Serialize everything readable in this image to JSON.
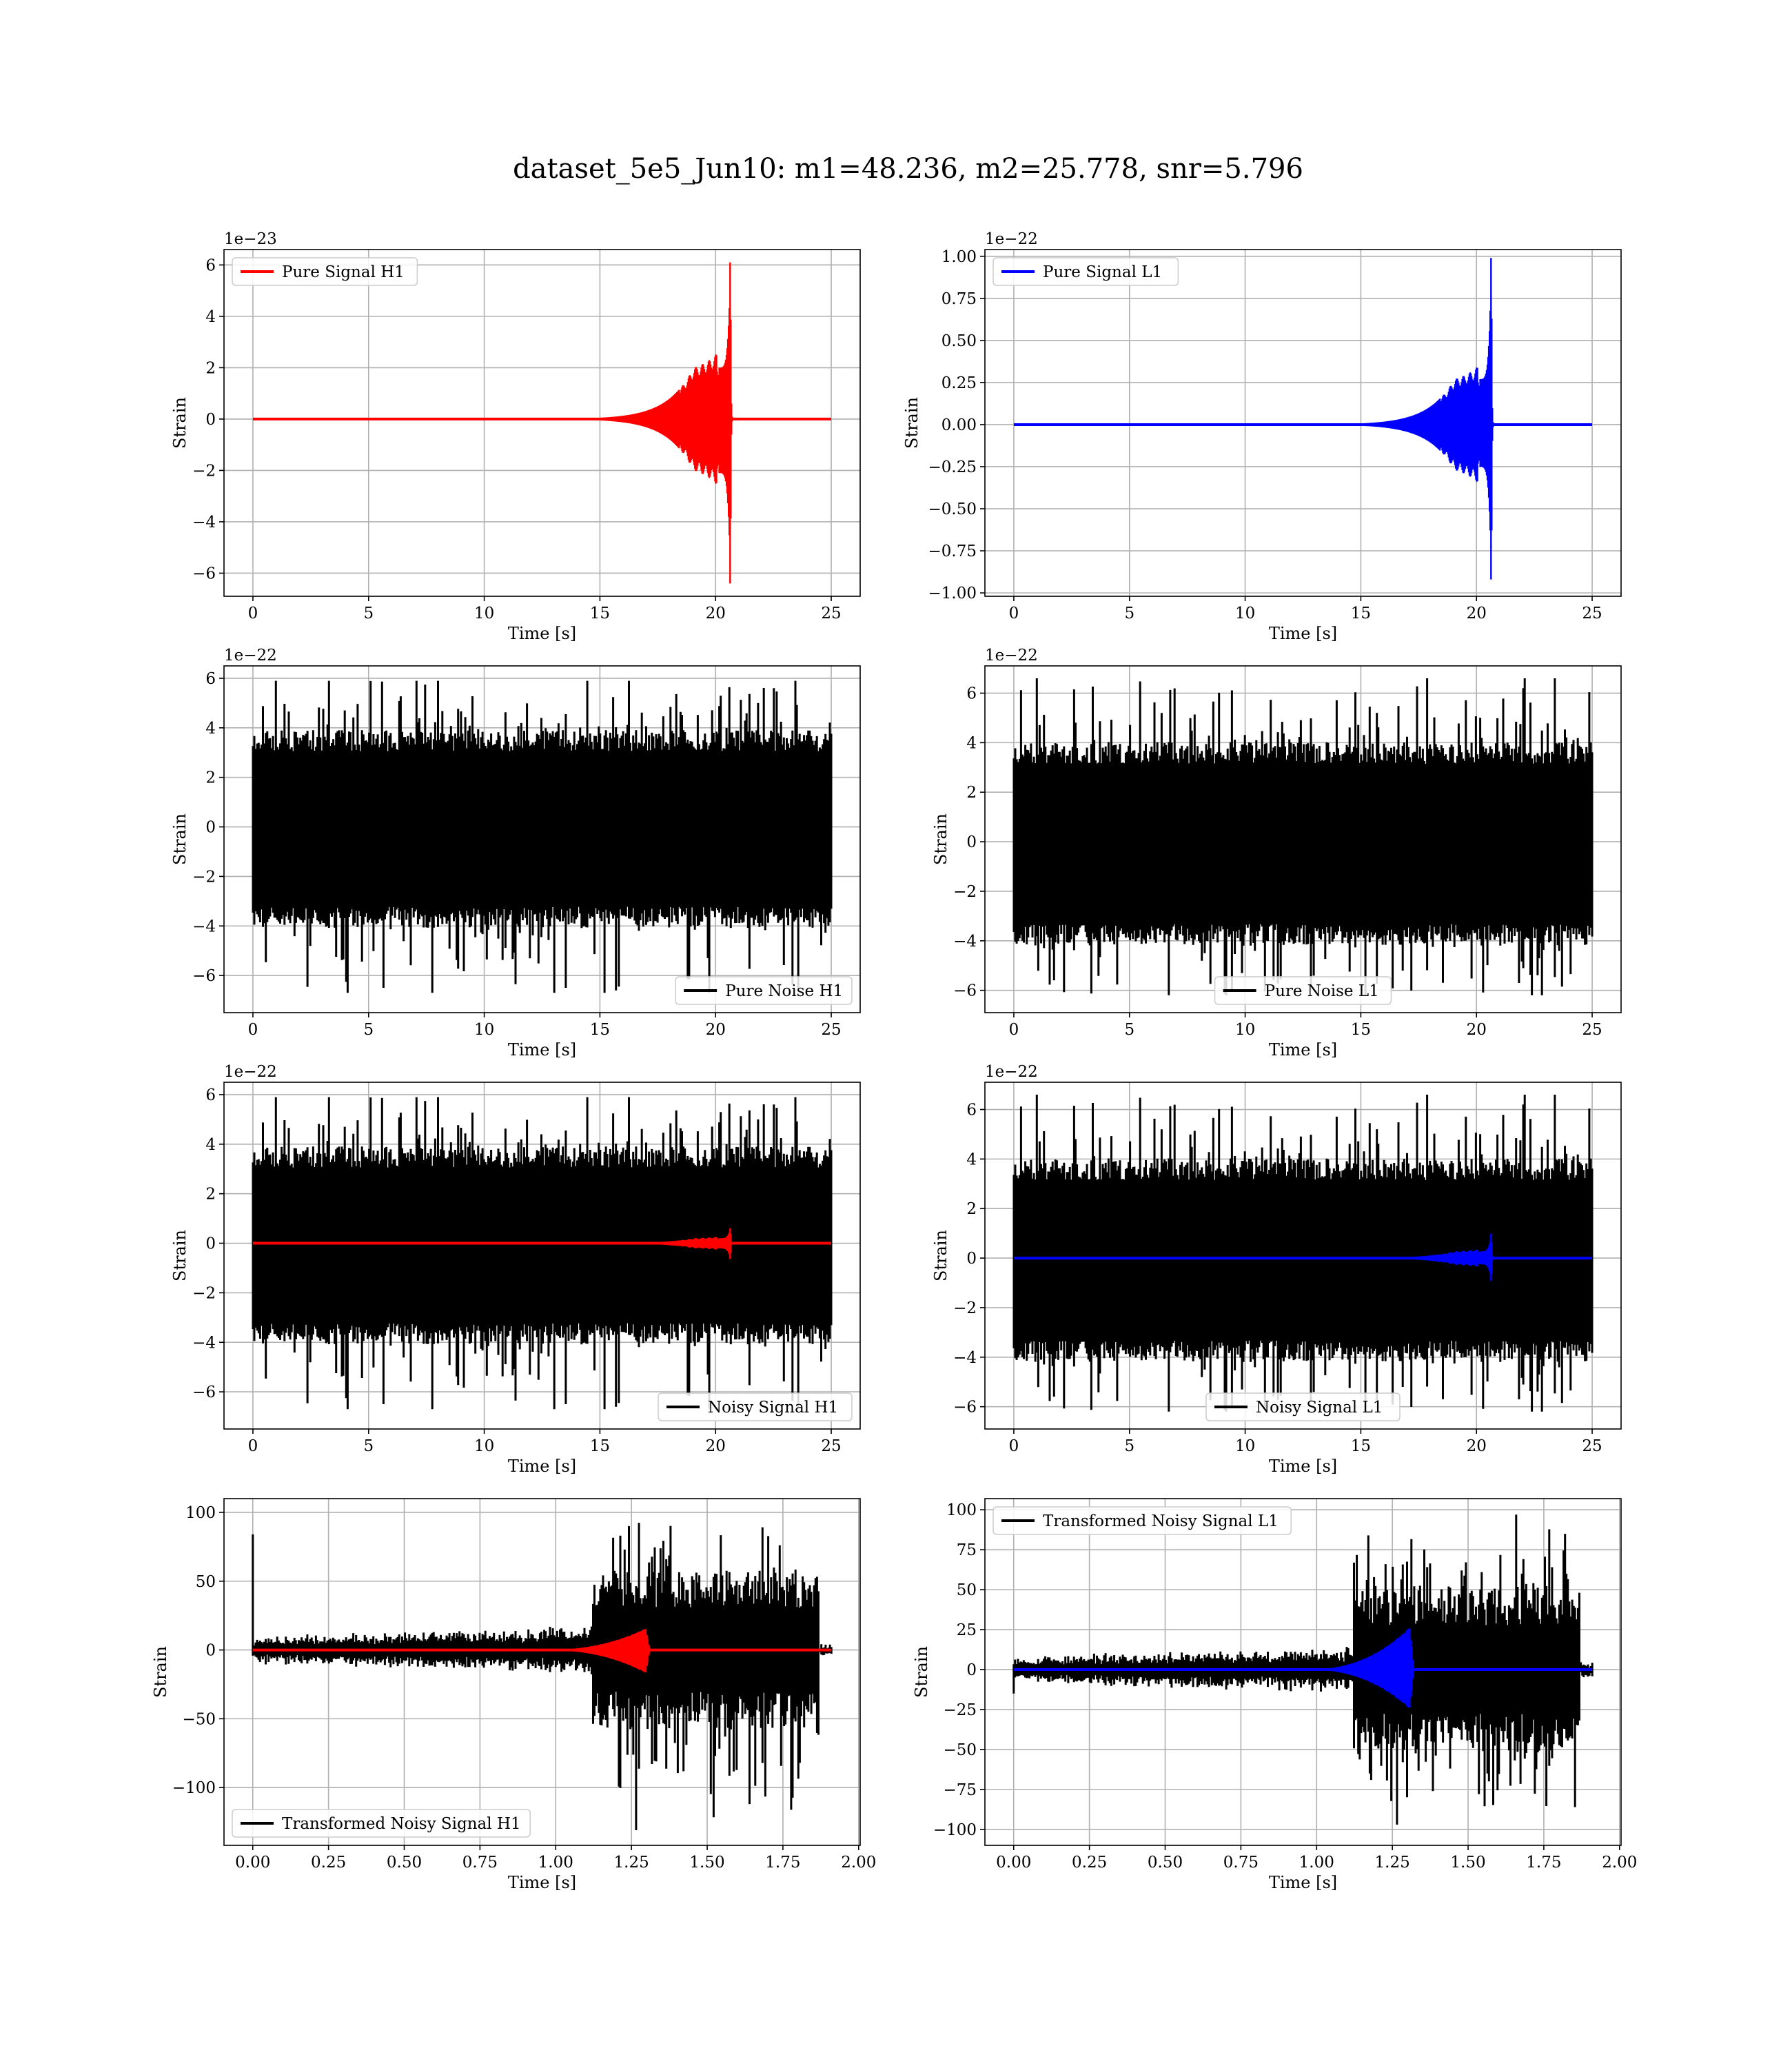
{
  "title": "dataset_5e5_Jun10: m1=48.236, m2=25.778, snr=5.796",
  "colors": {
    "h1_signal": "#ff0000",
    "l1_signal": "#0000ff",
    "noise": "#000000",
    "grid": "#b0b0b0"
  },
  "chart_data": [
    {
      "type": "line",
      "id": "pure-signal-h1",
      "xlabel": "Time [s]",
      "ylabel": "Strain",
      "offset_text": "1e−23",
      "xlim": [
        -1.25,
        26.25
      ],
      "ylim": [
        -6.9,
        6.6
      ],
      "xticks": [
        0,
        5,
        10,
        15,
        20,
        25
      ],
      "xtick_labels": [
        "0",
        "5",
        "10",
        "15",
        "20",
        "25"
      ],
      "yticks": [
        -6,
        -4,
        -2,
        0,
        2,
        4,
        6
      ],
      "ytick_labels": [
        "−6",
        "−4",
        "−2",
        "0",
        "2",
        "4",
        "6"
      ],
      "grid": true,
      "legend_loc": "upper left",
      "series": [
        {
          "name": "Pure Signal H1",
          "color": "#ff0000",
          "kind": "chirp",
          "t_start": 0,
          "t_end": 25,
          "t_merge": 20.65,
          "peak_pos": 6.1,
          "peak_neg": -6.4,
          "plateau": 2.0
        }
      ]
    },
    {
      "type": "line",
      "id": "pure-signal-l1",
      "xlabel": "Time [s]",
      "ylabel": "Strain",
      "offset_text": "1e−22",
      "xlim": [
        -1.25,
        26.25
      ],
      "ylim": [
        -1.02,
        1.04
      ],
      "xticks": [
        0,
        5,
        10,
        15,
        20,
        25
      ],
      "xtick_labels": [
        "0",
        "5",
        "10",
        "15",
        "20",
        "25"
      ],
      "yticks": [
        -1.0,
        -0.75,
        -0.5,
        -0.25,
        0.0,
        0.25,
        0.5,
        0.75,
        1.0
      ],
      "ytick_labels": [
        "−1.00",
        "−0.75",
        "−0.50",
        "−0.25",
        "0.00",
        "0.25",
        "0.50",
        "0.75",
        "1.00"
      ],
      "grid": true,
      "legend_loc": "upper left",
      "series": [
        {
          "name": "Pure Signal L1",
          "color": "#0000ff",
          "kind": "chirp",
          "t_start": 0,
          "t_end": 25,
          "t_merge": 20.65,
          "peak_pos": 0.99,
          "peak_neg": -0.92,
          "plateau": 0.27
        }
      ]
    },
    {
      "type": "line",
      "id": "pure-noise-h1",
      "xlabel": "Time [s]",
      "ylabel": "Strain",
      "offset_text": "1e−22",
      "xlim": [
        -1.25,
        26.25
      ],
      "ylim": [
        -7.5,
        6.5
      ],
      "xticks": [
        0,
        5,
        10,
        15,
        20,
        25
      ],
      "xtick_labels": [
        "0",
        "5",
        "10",
        "15",
        "20",
        "25"
      ],
      "yticks": [
        -6,
        -4,
        -2,
        0,
        2,
        4,
        6
      ],
      "ytick_labels": [
        "−6",
        "−4",
        "−2",
        "0",
        "2",
        "4",
        "6"
      ],
      "grid": true,
      "legend_loc": "lower right",
      "series": [
        {
          "name": "Pure Noise H1",
          "color": "#000000",
          "kind": "noise",
          "t_start": 0,
          "t_end": 25,
          "core": 3.4,
          "max_pos": 5.9,
          "max_neg": -6.7,
          "seed": 11
        }
      ]
    },
    {
      "type": "line",
      "id": "pure-noise-l1",
      "xlabel": "Time [s]",
      "ylabel": "Strain",
      "offset_text": "1e−22",
      "xlim": [
        -1.25,
        26.25
      ],
      "ylim": [
        -6.9,
        7.1
      ],
      "xticks": [
        0,
        5,
        10,
        15,
        20,
        25
      ],
      "xtick_labels": [
        "0",
        "5",
        "10",
        "15",
        "20",
        "25"
      ],
      "yticks": [
        -6,
        -4,
        -2,
        0,
        2,
        4,
        6
      ],
      "ytick_labels": [
        "−6",
        "−4",
        "−2",
        "0",
        "2",
        "4",
        "6"
      ],
      "grid": true,
      "legend_loc": "lower center",
      "series": [
        {
          "name": "Pure Noise L1",
          "color": "#000000",
          "kind": "noise",
          "t_start": 0,
          "t_end": 25,
          "core": 3.5,
          "max_pos": 6.6,
          "max_neg": -6.2,
          "seed": 23
        }
      ]
    },
    {
      "type": "line",
      "id": "noisy-signal-h1",
      "xlabel": "Time [s]",
      "ylabel": "Strain",
      "offset_text": "1e−22",
      "xlim": [
        -1.25,
        26.25
      ],
      "ylim": [
        -7.5,
        6.5
      ],
      "xticks": [
        0,
        5,
        10,
        15,
        20,
        25
      ],
      "xtick_labels": [
        "0",
        "5",
        "10",
        "15",
        "20",
        "25"
      ],
      "yticks": [
        -6,
        -4,
        -2,
        0,
        2,
        4,
        6
      ],
      "ytick_labels": [
        "−6",
        "−4",
        "−2",
        "0",
        "2",
        "4",
        "6"
      ],
      "grid": true,
      "legend_loc": "lower right",
      "series": [
        {
          "name": "Noisy Signal H1",
          "color": "#000000",
          "kind": "noise",
          "t_start": 0,
          "t_end": 25,
          "core": 3.4,
          "max_pos": 5.9,
          "max_neg": -6.7,
          "seed": 11
        },
        {
          "name": "",
          "color": "#ff0000",
          "kind": "chirp",
          "t_start": 0,
          "t_end": 25,
          "t_merge": 20.65,
          "peak_pos": 0.61,
          "peak_neg": -0.64,
          "plateau": 0.2
        }
      ]
    },
    {
      "type": "line",
      "id": "noisy-signal-l1",
      "xlabel": "Time [s]",
      "ylabel": "Strain",
      "offset_text": "1e−22",
      "xlim": [
        -1.25,
        26.25
      ],
      "ylim": [
        -6.9,
        7.1
      ],
      "xticks": [
        0,
        5,
        10,
        15,
        20,
        25
      ],
      "xtick_labels": [
        "0",
        "5",
        "10",
        "15",
        "20",
        "25"
      ],
      "yticks": [
        -6,
        -4,
        -2,
        0,
        2,
        4,
        6
      ],
      "ytick_labels": [
        "−6",
        "−4",
        "−2",
        "0",
        "2",
        "4",
        "6"
      ],
      "grid": true,
      "legend_loc": "lower center",
      "series": [
        {
          "name": "Noisy Signal L1",
          "color": "#000000",
          "kind": "noise",
          "t_start": 0,
          "t_end": 25,
          "core": 3.5,
          "max_pos": 6.6,
          "max_neg": -6.2,
          "seed": 23
        },
        {
          "name": "",
          "color": "#0000ff",
          "kind": "chirp",
          "t_start": 0,
          "t_end": 25,
          "t_merge": 20.65,
          "peak_pos": 0.99,
          "peak_neg": -0.92,
          "plateau": 0.27
        }
      ]
    },
    {
      "type": "line",
      "id": "transformed-noisy-signal-h1",
      "xlabel": "Time [s]",
      "ylabel": "Strain",
      "offset_text": "",
      "xlim": [
        -0.095,
        2.005
      ],
      "ylim": [
        -142,
        110
      ],
      "xticks": [
        0,
        0.25,
        0.5,
        0.75,
        1.0,
        1.25,
        1.5,
        1.75,
        2.0
      ],
      "xtick_labels": [
        "0.00",
        "0.25",
        "0.50",
        "0.75",
        "1.00",
        "1.25",
        "1.50",
        "1.75",
        "2.00"
      ],
      "yticks": [
        -100,
        -50,
        0,
        50,
        100
      ],
      "ytick_labels": [
        "−100",
        "−50",
        "0",
        "50",
        "100"
      ],
      "grid": true,
      "legend_loc": "lower left",
      "series": [
        {
          "name": "Transformed Noisy Signal H1",
          "color": "#000000",
          "kind": "transformed",
          "t_start": 0,
          "t_end": 1.91,
          "t_burst_start": 1.12,
          "t_burst_end": 1.87,
          "spike": 84,
          "early_amp": 13,
          "burst_max": 98,
          "burst_min": -131,
          "burst_core": 55,
          "seed": 37
        },
        {
          "name": "",
          "color": "#ff0000",
          "kind": "ringdown",
          "t_start": 0,
          "t_end": 1.91,
          "t_peak": 1.3,
          "peak_pos": 16,
          "peak_neg": -17
        }
      ]
    },
    {
      "type": "line",
      "id": "transformed-noisy-signal-l1",
      "xlabel": "Time [s]",
      "ylabel": "Strain",
      "offset_text": "",
      "xlim": [
        -0.095,
        2.005
      ],
      "ylim": [
        -110,
        107
      ],
      "xticks": [
        0,
        0.25,
        0.5,
        0.75,
        1.0,
        1.25,
        1.5,
        1.75,
        2.0
      ],
      "xtick_labels": [
        "0.00",
        "0.25",
        "0.50",
        "0.75",
        "1.00",
        "1.25",
        "1.50",
        "1.75",
        "2.00"
      ],
      "yticks": [
        -100,
        -75,
        -50,
        -25,
        0,
        25,
        50,
        75,
        100
      ],
      "ytick_labels": [
        "−100",
        "−75",
        "−50",
        "−25",
        "0",
        "25",
        "50",
        "75",
        "100"
      ],
      "grid": true,
      "legend_loc": "upper left",
      "series": [
        {
          "name": "Transformed Noisy Signal L1",
          "color": "#000000",
          "kind": "transformed",
          "t_start": 0,
          "t_end": 1.91,
          "t_burst_start": 1.12,
          "t_burst_end": 1.87,
          "spike": -15,
          "early_amp": 11,
          "burst_max": 97,
          "burst_min": -97,
          "burst_core": 50,
          "seed": 53
        },
        {
          "name": "",
          "color": "#0000ff",
          "kind": "ringdown",
          "t_start": 0,
          "t_end": 1.91,
          "t_peak": 1.31,
          "peak_pos": 27,
          "peak_neg": -25
        }
      ]
    }
  ]
}
